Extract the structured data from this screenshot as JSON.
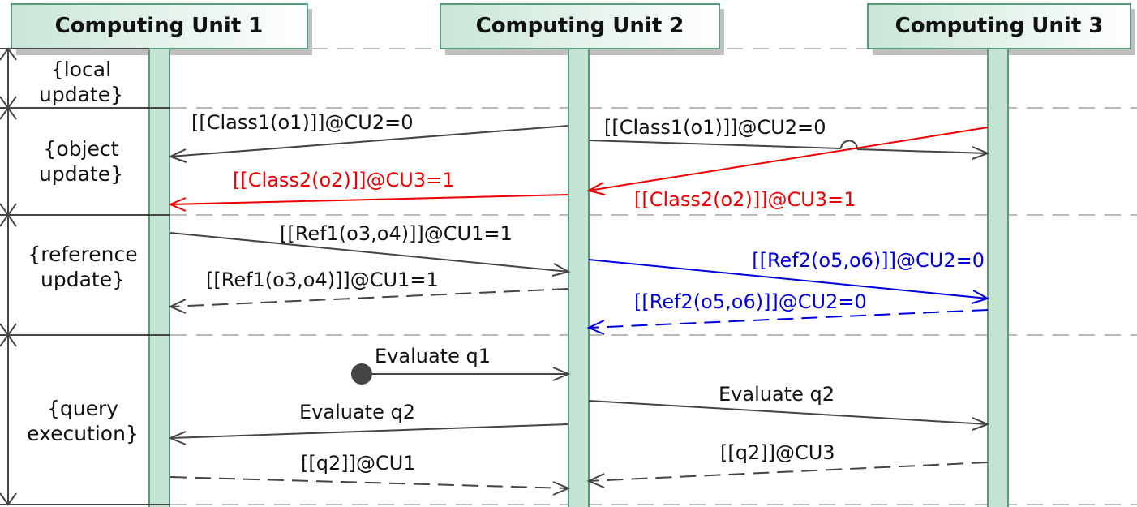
{
  "units": [
    {
      "id": "cu1",
      "title": "Computing Unit 1"
    },
    {
      "id": "cu2",
      "title": "Computing Unit 2"
    },
    {
      "id": "cu3",
      "title": "Computing Unit 3"
    }
  ],
  "phases": [
    {
      "id": "local",
      "lines": [
        "{local",
        "update}"
      ]
    },
    {
      "id": "object",
      "lines": [
        "{object",
        "update}"
      ]
    },
    {
      "id": "reference",
      "lines": [
        "{reference",
        "update}"
      ]
    },
    {
      "id": "query",
      "lines": [
        "{query",
        "execution}"
      ]
    }
  ],
  "messages": [
    {
      "id": "m1",
      "from": "cu2",
      "to": "cu1",
      "label": "[[Class1(o1)]]@CU2=0",
      "style": "solid",
      "color": "#444444"
    },
    {
      "id": "m2",
      "from": "cu2",
      "to": "cu3",
      "label": "[[Class1(o1)]]@CU2=0",
      "style": "solid",
      "color": "#444444"
    },
    {
      "id": "m3",
      "from": "cu3",
      "to": "cu2",
      "label": "[[Class2(o2)]]@CU3=1",
      "style": "solid",
      "color": "#ee0000"
    },
    {
      "id": "m4",
      "from": "cu2",
      "to": "cu1",
      "label": "[[Class2(o2)]]@CU3=1",
      "style": "solid",
      "color": "#ee0000"
    },
    {
      "id": "m5",
      "from": "cu1",
      "to": "cu2",
      "label": "[[Ref1(o3,o4)]]@CU1=1",
      "style": "solid",
      "color": "#444444"
    },
    {
      "id": "m6",
      "from": "cu2",
      "to": "cu1",
      "label": "[[Ref1(o3,o4)]]@CU1=1",
      "style": "dashed",
      "color": "#444444"
    },
    {
      "id": "m7",
      "from": "cu2",
      "to": "cu3",
      "label": "[[Ref2(o5,o6)]]@CU2=0",
      "style": "solid",
      "color": "#0000dd"
    },
    {
      "id": "m8",
      "from": "cu3",
      "to": "cu2",
      "label": "[[Ref2(o5,o6)]]@CU2=0",
      "style": "dashed",
      "color": "#0000dd"
    },
    {
      "id": "m9",
      "from": "found",
      "to": "cu2",
      "label": "Evaluate q1",
      "style": "solid",
      "color": "#444444"
    },
    {
      "id": "m10",
      "from": "cu2",
      "to": "cu3",
      "label": "Evaluate q2",
      "style": "solid",
      "color": "#444444"
    },
    {
      "id": "m11",
      "from": "cu2",
      "to": "cu1",
      "label": "Evaluate q2",
      "style": "solid",
      "color": "#444444"
    },
    {
      "id": "m12",
      "from": "cu1",
      "to": "cu2",
      "label": "[[q2]]@CU1",
      "style": "dashed",
      "color": "#444444"
    },
    {
      "id": "m13",
      "from": "cu3",
      "to": "cu2",
      "label": "[[q2]]@CU3",
      "style": "dashed",
      "color": "#444444"
    }
  ],
  "colors": {
    "header_fill": "#d6ede1",
    "header_stroke": "#5a9a7a",
    "lifeline_fill": "#c3e3d3",
    "lifeline_stroke": "#5a9a7a",
    "separator": "#bbbbbb",
    "axis": "#444444"
  }
}
